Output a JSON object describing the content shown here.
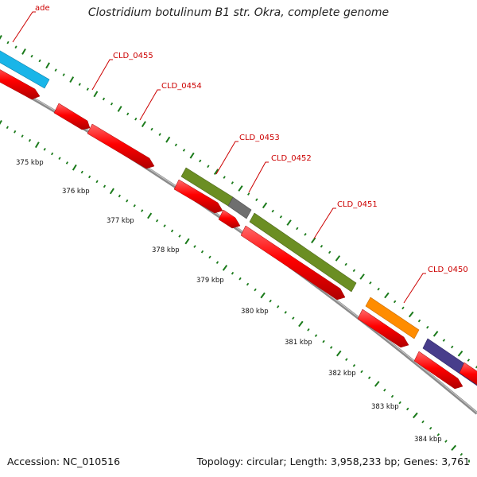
{
  "title": "Clostridium botulinum B1 str. Okra, complete genome",
  "footer": {
    "accession": "Accession: NC_010516",
    "topology": "Topology: circular; Length: 3,958,233 bp; Genes: 3,761"
  },
  "colors": {
    "backbone": "#8a8a8a",
    "cds": "#ff0000",
    "label": "#cc0000",
    "tick": "#1a7a1a",
    "ade": "#19b5e8",
    "CLD_0453": "#6b8e23",
    "CLD_0453_tail": "#707070",
    "CLD_0451": "#6b8e23",
    "CLD_0450": "#ff8c00",
    "last_gene": "#483d8b"
  },
  "scale": {
    "unit": "kbp",
    "ticks": [
      {
        "kbp": 375,
        "label": "375 kbp"
      },
      {
        "kbp": 376,
        "label": "376 kbp"
      },
      {
        "kbp": 377,
        "label": "377 kbp"
      },
      {
        "kbp": 378,
        "label": "378 kbp"
      },
      {
        "kbp": 379,
        "label": "379 kbp"
      },
      {
        "kbp": 380,
        "label": "380 kbp"
      },
      {
        "kbp": 381,
        "label": "381 kbp"
      },
      {
        "kbp": 382,
        "label": "382 kbp"
      },
      {
        "kbp": 383,
        "label": "383 kbp"
      },
      {
        "kbp": 384,
        "label": "384 kbp"
      }
    ]
  },
  "genes": [
    {
      "name": "ade",
      "label": "ade",
      "color_key": "ade"
    },
    {
      "name": "CLD_0455",
      "label": "CLD_0455"
    },
    {
      "name": "CLD_0454",
      "label": "CLD_0454"
    },
    {
      "name": "CLD_0453",
      "label": "CLD_0453",
      "color_key": "CLD_0453"
    },
    {
      "name": "CLD_0452",
      "label": "CLD_0452"
    },
    {
      "name": "CLD_0451",
      "label": "CLD_0451",
      "color_key": "CLD_0451"
    },
    {
      "name": "CLD_0450",
      "label": "CLD_0450",
      "color_key": "CLD_0450"
    }
  ]
}
